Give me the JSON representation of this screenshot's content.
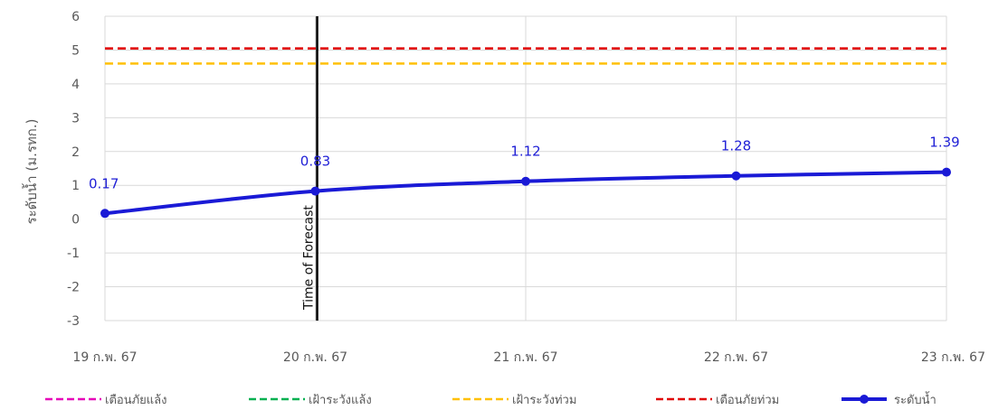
{
  "chart_data": {
    "type": "line",
    "categories": [
      "19 ก.พ. 67",
      "20 ก.พ. 67",
      "21 ก.พ. 67",
      "22 ก.พ. 67",
      "23 ก.พ. 67"
    ],
    "ylabel": "ระดับน้ำ (ม.รทก.)",
    "ylim": [
      -3,
      6
    ],
    "yticks": [
      6,
      5,
      4,
      3,
      2,
      1,
      0,
      -1,
      -2,
      -3
    ],
    "grid": true,
    "legend_position": "bottom",
    "series": [
      {
        "name": "ระดับน้ำ",
        "values": [
          0.17,
          0.83,
          1.12,
          1.28,
          1.39
        ],
        "labels": [
          "0.17",
          "0.83",
          "1.12",
          "1.28",
          "1.39"
        ],
        "color": "#1a1ad6"
      }
    ],
    "thresholds": [
      {
        "name": "เตือนภัยแล้ง",
        "color": "#e600b8",
        "value": null
      },
      {
        "name": "เฝ้าระวังแล้ง",
        "color": "#00b050",
        "value": null
      },
      {
        "name": "เฝ้าระวังท่วม",
        "color": "#ffc000",
        "value": 4.6
      },
      {
        "name": "เตือนภัยท่วม",
        "color": "#e00000",
        "value": 5.05
      }
    ],
    "forecast_marker": {
      "label": "Time of Forecast",
      "category_index": 1,
      "color": "#000000"
    }
  }
}
